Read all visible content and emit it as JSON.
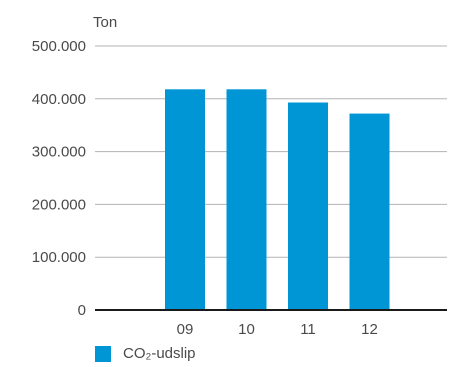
{
  "chart_data": {
    "type": "bar",
    "unit_label": "Ton",
    "categories": [
      "09",
      "10",
      "11",
      "12"
    ],
    "series": [
      {
        "name": "CO₂-udslip",
        "values": [
          418000,
          418000,
          393000,
          372000
        ]
      }
    ],
    "yticks": [
      "500.000",
      "400.000",
      "300.000",
      "200.000",
      "100.000",
      "0"
    ],
    "ylim": [
      0,
      500000
    ],
    "grid": true,
    "legend_position": "bottom-left",
    "colors": {
      "bar": "#0096d6",
      "grid": "#b3b3b3",
      "axis": "#1a1a1a"
    }
  }
}
